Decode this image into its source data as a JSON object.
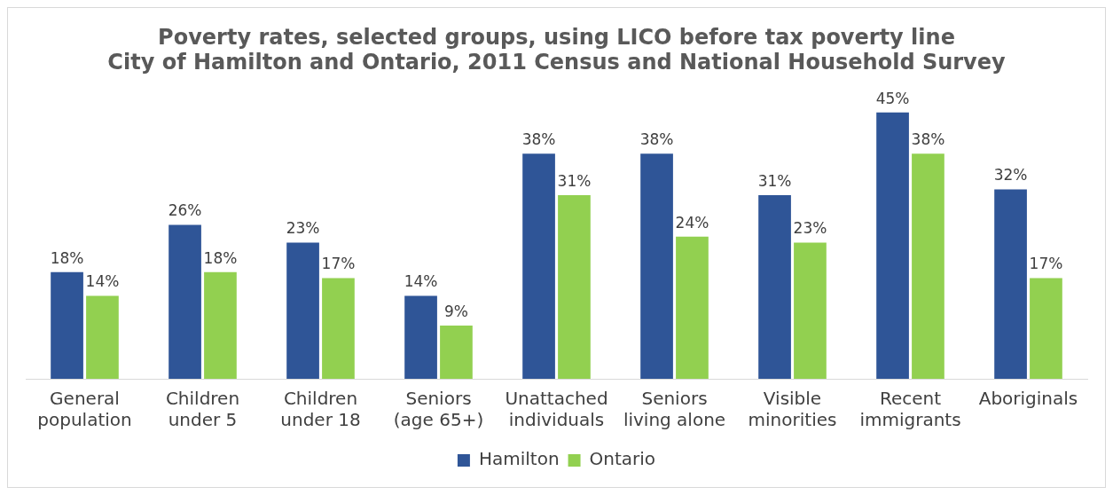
{
  "chart_data": {
    "type": "bar",
    "title": [
      "Poverty rates, selected groups, using LICO before tax poverty line",
      "City of Hamilton and Ontario, 2011 Census and National Household Survey"
    ],
    "categories": [
      "General population",
      "Children under 5",
      "Children under 18",
      "Seniors (age 65+)",
      "Unattached individuals",
      "Seniors living alone",
      "Visible minorities",
      "Recent immigrants",
      "Aboriginals"
    ],
    "series": [
      {
        "name": "Hamilton",
        "color": "#2f5597",
        "values": [
          18,
          26,
          23,
          14,
          38,
          38,
          31,
          45,
          32
        ],
        "value_labels": [
          "18%",
          "26%",
          "23%",
          "14%",
          "38%",
          "38%",
          "31%",
          "45%",
          "32%"
        ]
      },
      {
        "name": "Ontario",
        "color": "#92d050",
        "values": [
          14,
          18,
          17,
          9,
          31,
          24,
          23,
          38,
          17
        ],
        "value_labels": [
          "14%",
          "18%",
          "17%",
          "9%",
          "31%",
          "24%",
          "23%",
          "38%",
          "17%"
        ]
      }
    ],
    "grid": false,
    "legend": "bottom",
    "tick_labels": "x"
  }
}
